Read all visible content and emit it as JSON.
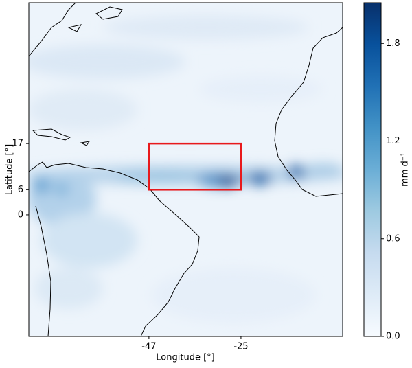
{
  "chart_data": {
    "type": "map",
    "xlabel": "Longitude [°]",
    "ylabel": "Latitude [°]",
    "xlim": [
      -75.7,
      -0.7
    ],
    "ylim": [
      -29,
      50.6
    ],
    "xticks": [
      -47,
      -25
    ],
    "yticks": [
      0,
      6,
      17
    ],
    "region": {
      "lon": [
        -47,
        -25
      ],
      "lat": [
        6,
        17
      ],
      "color": "#e8191c"
    },
    "colorbar": {
      "label": "mm d⁻¹",
      "lim": [
        0,
        2.05
      ],
      "ticks": [
        {
          "value": 0,
          "label": "0.0"
        },
        0.6,
        1.2,
        1.8
      ],
      "colors": [
        "#f7fbff",
        "#deebf7",
        "#c6dbef",
        "#9ecae1",
        "#6baed6",
        "#4292c6",
        "#2171b5",
        "#08519c",
        "#08306b"
      ]
    }
  }
}
